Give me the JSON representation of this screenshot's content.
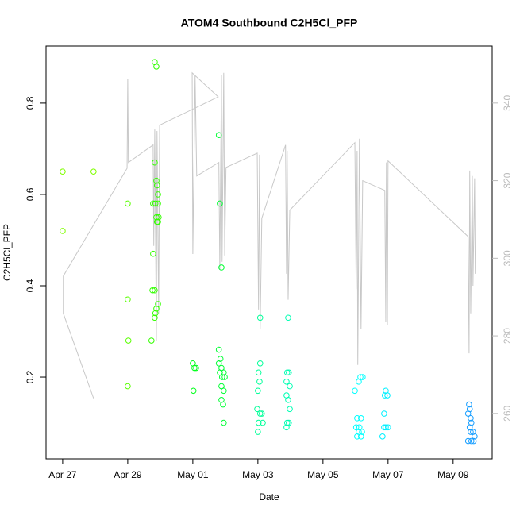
{
  "chart_data": {
    "type": "scatter",
    "title": "ATOM4 Southbound C2H5Cl_PFP",
    "x_label": "Date",
    "y_label": "C2H5Cl_PFP",
    "xlim": [
      -0.51,
      13.2
    ],
    "xticks": [
      {
        "value": 0,
        "label": "Apr 27"
      },
      {
        "value": 2,
        "label": "Apr 29"
      },
      {
        "value": 4,
        "label": "May 01"
      },
      {
        "value": 6,
        "label": "May 03"
      },
      {
        "value": 8,
        "label": "May 05"
      },
      {
        "value": 10,
        "label": "May 07"
      },
      {
        "value": 12,
        "label": "May 09"
      }
    ],
    "ylim": [
      0.021,
      0.925
    ],
    "yticks": [
      0.2,
      0.4,
      0.6,
      0.8
    ],
    "y2lim": [
      248.3,
      354.7
    ],
    "y2ticks": [
      260,
      280,
      300,
      320,
      340
    ],
    "y2_color": "#bbbbbb",
    "x": [
      0,
      0,
      0.95,
      2.0,
      2.0,
      2.02,
      2.0,
      2.83,
      2.88,
      2.83,
      2.88,
      2.9,
      2.93,
      2.78,
      2.85,
      2.93,
      2.88,
      2.9,
      2.95,
      2.93,
      2.78,
      2.76,
      2.83,
      2.88,
      2.83,
      2.85,
      2.93,
      2.73,
      4.0,
      4.05,
      4.1,
      4.02,
      4.8,
      4.83,
      4.88,
      4.8,
      4.85,
      4.8,
      4.88,
      4.83,
      4.9,
      4.95,
      4.98,
      4.88,
      4.95,
      4.88,
      4.93,
      4.95,
      6.07,
      6.07,
      6.02,
      6.05,
      6.0,
      5.98,
      6.07,
      6.12,
      6.02,
      6.15,
      6.0,
      6.93,
      6.95,
      6.9,
      6.88,
      6.98,
      6.88,
      6.93,
      6.98,
      6.9,
      6.95,
      6.88,
      9.1,
      9.15,
      9.22,
      8.98,
      9.05,
      9.17,
      9.02,
      9.12,
      9.1,
      9.05,
      9.17,
      9.2,
      9.93,
      9.98,
      9.9,
      9.88,
      9.88,
      9.93,
      10.0,
      9.83,
      12.49,
      12.51,
      12.46,
      12.54,
      12.56,
      12.51,
      12.61,
      12.66,
      12.56,
      12.46,
      12.63,
      12.54
    ],
    "values": [
      0.65,
      0.52,
      0.65,
      0.58,
      0.37,
      0.28,
      0.18,
      0.89,
      0.88,
      0.67,
      0.63,
      0.62,
      0.6,
      0.58,
      0.58,
      0.58,
      0.55,
      0.54,
      0.55,
      0.54,
      0.47,
      0.39,
      0.39,
      0.35,
      0.33,
      0.34,
      0.36,
      0.28,
      0.23,
      0.22,
      0.22,
      0.17,
      0.73,
      0.58,
      0.44,
      0.26,
      0.24,
      0.23,
      0.22,
      0.21,
      0.2,
      0.21,
      0.2,
      0.18,
      0.17,
      0.15,
      0.14,
      0.1,
      0.33,
      0.23,
      0.21,
      0.19,
      0.17,
      0.13,
      0.12,
      0.12,
      0.1,
      0.1,
      0.08,
      0.33,
      0.21,
      0.21,
      0.19,
      0.18,
      0.16,
      0.15,
      0.13,
      0.1,
      0.1,
      0.09,
      0.19,
      0.2,
      0.2,
      0.17,
      0.11,
      0.11,
      0.09,
      0.09,
      0.08,
      0.07,
      0.07,
      0.08,
      0.17,
      0.16,
      0.16,
      0.12,
      0.09,
      0.09,
      0.09,
      0.07,
      0.14,
      0.13,
      0.12,
      0.11,
      0.1,
      0.09,
      0.08,
      0.07,
      0.06,
      0.06,
      0.06,
      0.08
    ],
    "colors": [
      "#80ff00",
      "#80ff00",
      "#80ff00",
      "#59ff00",
      "#59ff00",
      "#59ff00",
      "#59ff00",
      "#33ff00",
      "#33ff00",
      "#33ff00",
      "#33ff00",
      "#33ff00",
      "#33ff00",
      "#33ff00",
      "#33ff00",
      "#33ff00",
      "#33ff00",
      "#33ff00",
      "#33ff00",
      "#33ff00",
      "#33ff00",
      "#33ff00",
      "#33ff00",
      "#33ff00",
      "#33ff00",
      "#33ff00",
      "#33ff00",
      "#33ff00",
      "#00ff1a",
      "#00ff1a",
      "#00ff1a",
      "#00ff1a",
      "#00ff33",
      "#00ff33",
      "#00ff33",
      "#00ff33",
      "#00ff33",
      "#00ff33",
      "#00ff33",
      "#00ff33",
      "#00ff33",
      "#00ff33",
      "#00ff33",
      "#00ff33",
      "#00ff33",
      "#00ff33",
      "#00ff33",
      "#00ff33",
      "#00ff99",
      "#00ff99",
      "#00ff99",
      "#00ff99",
      "#00ff99",
      "#00ff99",
      "#00ff99",
      "#00ff99",
      "#00ff99",
      "#00ff99",
      "#00ff99",
      "#00ffb3",
      "#00ffb3",
      "#00ffb3",
      "#00ffb3",
      "#00ffb3",
      "#00ffb3",
      "#00ffb3",
      "#00ffb3",
      "#00ffb3",
      "#00ffb3",
      "#00ffb3",
      "#00ffff",
      "#00ffff",
      "#00ffff",
      "#00ffff",
      "#00ffff",
      "#00ffff",
      "#00ffff",
      "#00ffff",
      "#00ffff",
      "#00ffff",
      "#00ffff",
      "#00ffff",
      "#00f0ff",
      "#00f0ff",
      "#00f0ff",
      "#00f0ff",
      "#00f0ff",
      "#00f0ff",
      "#00f0ff",
      "#00f0ff",
      "#1a9fff",
      "#1a9fff",
      "#1a9fff",
      "#1a9fff",
      "#1a9fff",
      "#1a9fff",
      "#1a9fff",
      "#1a9fff",
      "#1a9fff",
      "#1a9fff",
      "#1a9fff",
      "#1a9fff"
    ],
    "line": {
      "axis": "y2",
      "color": "#c8c8c8",
      "x": [
        0.95,
        0.02,
        0.02,
        1.98,
        2.0,
        2.02,
        2.78,
        2.8,
        2.83,
        2.88,
        2.9,
        2.95,
        2.98,
        4.78,
        3.98,
        4.0,
        4.07,
        4.12,
        4.8,
        4.83,
        4.88,
        4.9,
        4.95,
        4.98,
        5.02,
        5.98,
        6.02,
        6.05,
        6.07,
        6.12,
        6.85,
        6.88,
        6.9,
        6.93,
        6.98,
        8.98,
        9.02,
        9.05,
        9.07,
        9.12,
        9.17,
        9.22,
        9.9,
        9.93,
        9.95,
        9.98,
        10.0,
        12.46,
        12.49,
        12.51,
        12.54,
        12.59,
        12.61,
        12.66,
        12.68
      ],
      "values": [
        263.9,
        285.8,
        295.4,
        323.2,
        346.1,
        324.7,
        329.2,
        303.2,
        333.2,
        278.6,
        332.8,
        285.8,
        334.3,
        341.6,
        347.8,
        301.1,
        347.0,
        321.2,
        324.7,
        297.0,
        347.2,
        299.1,
        347.8,
        300.7,
        323.4,
        327.1,
        286.8,
        326.7,
        281.7,
        310.3,
        329.2,
        296.0,
        327.7,
        289.3,
        312.4,
        329.8,
        292.0,
        327.7,
        272.5,
        330.8,
        281.7,
        320.0,
        317.5,
        283.7,
        324.7,
        282.7,
        325.1,
        305.6,
        275.5,
        322.6,
        285.8,
        321.2,
        292.9,
        320.6,
        296.0
      ]
    }
  }
}
